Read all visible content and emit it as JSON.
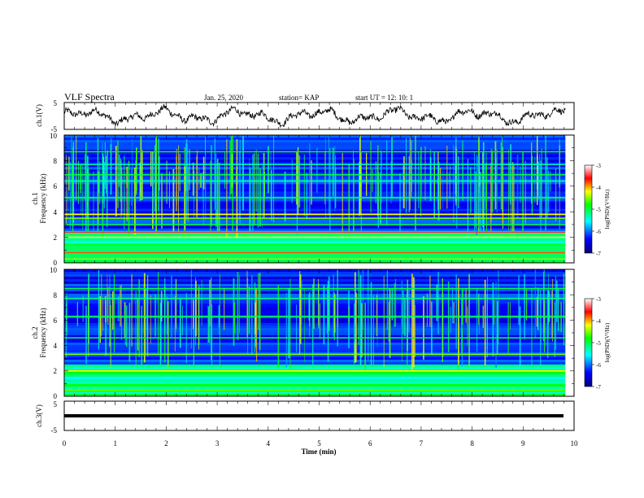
{
  "header": {
    "title": "VLF Spectra",
    "date": "Jan. 25, 2020",
    "station": "station= KAP",
    "start": "start  UT =   12: 10: 1"
  },
  "panels": {
    "ch1_wave": {
      "ylabel": "ch.1(V)",
      "yticks": [
        "5",
        "-5"
      ]
    },
    "ch1_spec": {
      "ylabel": [
        "ch.1",
        "Frequency (kHz)"
      ],
      "yticks": [
        "10",
        "8",
        "6",
        "4",
        "2",
        "0"
      ]
    },
    "ch2_spec": {
      "ylabel": [
        "ch.2",
        "Frequency (kHz)"
      ],
      "yticks": [
        "10",
        "8",
        "6",
        "4",
        "2",
        "0"
      ]
    },
    "ch3_wave": {
      "ylabel": "ch.3(V)",
      "yticks": [
        "5",
        "-5"
      ]
    }
  },
  "xaxis": {
    "label": "Time (min)",
    "ticks": [
      "0",
      "1",
      "2",
      "3",
      "4",
      "5",
      "6",
      "7",
      "8",
      "9",
      "10"
    ]
  },
  "colorbar": {
    "label": "log(PSD)(V²/Hz)",
    "ticks": [
      "-3",
      "-4",
      "-5",
      "-6",
      "-7"
    ],
    "colors": [
      "#000080",
      "#0000ff",
      "#00ffff",
      "#00ff00",
      "#ffff00",
      "#ff0000",
      "#ffffff"
    ]
  },
  "chart_data": [
    {
      "type": "line",
      "name": "ch.1 waveform",
      "x_range": [
        0,
        9.83
      ],
      "xlim": [
        0,
        10
      ],
      "ylim": [
        -5,
        5
      ],
      "description_values_approx": {
        "mean": 0,
        "min": -3.5,
        "max": 4.5
      }
    },
    {
      "type": "heatmap",
      "name": "ch.1 spectrogram",
      "xlim": [
        0,
        10
      ],
      "ylim": [
        0,
        10
      ],
      "x_extent": [
        0,
        9.83
      ],
      "clim": [
        -7,
        -3
      ],
      "bands_khz": [
        {
          "f": 0.3,
          "level": -4.5
        },
        {
          "f": 0.8,
          "level": -3.8
        },
        {
          "f": 1.5,
          "level": -5.2
        },
        {
          "f": 2.0,
          "level": -4.2
        },
        {
          "f": 2.4,
          "level": -3.5
        },
        {
          "f": 3.0,
          "level": -5.0
        },
        {
          "f": 3.5,
          "level": -4.5
        },
        {
          "f": 3.8,
          "level": -4.2
        },
        {
          "f": 5.1,
          "level": -5.0
        },
        {
          "f": 6.4,
          "level": -5.3
        },
        {
          "f": 6.9,
          "level": -5.0
        },
        {
          "f": 7.7,
          "level": -5.3
        },
        {
          "f": 8.7,
          "level": -4.8
        }
      ]
    },
    {
      "type": "heatmap",
      "name": "ch.2 spectrogram",
      "xlim": [
        0,
        10
      ],
      "ylim": [
        0,
        10
      ],
      "x_extent": [
        0,
        9.83
      ],
      "clim": [
        -7,
        -3
      ],
      "bands_khz": [
        {
          "f": 0.5,
          "level": -4.5
        },
        {
          "f": 2.0,
          "level": -4.2
        },
        {
          "f": 3.3,
          "level": -4.5
        },
        {
          "f": 4.6,
          "level": -5.0
        },
        {
          "f": 6.3,
          "level": -5.0
        },
        {
          "f": 7.7,
          "level": -5.2
        },
        {
          "f": 8.5,
          "level": -5.0
        }
      ]
    },
    {
      "type": "line",
      "name": "ch.3 waveform",
      "x_range": [
        0,
        9.83
      ],
      "xlim": [
        0,
        10
      ],
      "ylim": [
        -5,
        5
      ],
      "constant_value": 0
    }
  ]
}
